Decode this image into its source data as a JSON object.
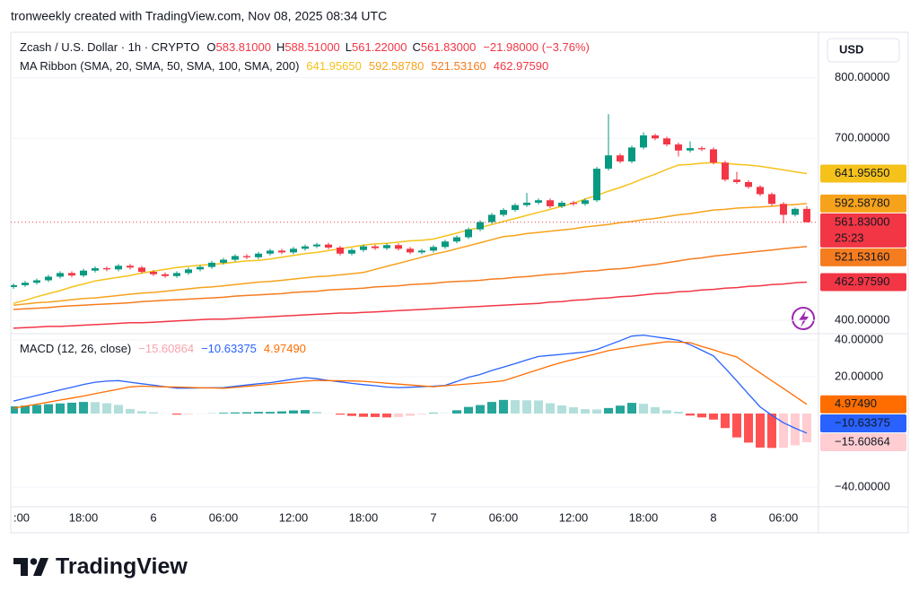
{
  "header": "tronweekly created with TradingView.com, Nov 08, 2025 08:34 UTC",
  "brand": "TradingView",
  "chart_data": [
    {
      "type": "candlestick",
      "title": "Zcash / U.S. Dollar · 1h · CRYPTO",
      "ohlc_legend": [
        {
          "key": "O",
          "value": "583.81000"
        },
        {
          "key": "H",
          "value": "588.51000"
        },
        {
          "key": "L",
          "value": "561.22000"
        },
        {
          "key": "C",
          "value": "561.83000"
        }
      ],
      "change": "−21.98000 (−3.76%)",
      "currency": "USD",
      "categories": [
        ":00",
        null,
        null,
        null,
        null,
        null,
        "18:00",
        null,
        null,
        null,
        null,
        null,
        "6",
        null,
        null,
        null,
        null,
        null,
        "06:00",
        null,
        null,
        null,
        null,
        null,
        "12:00",
        null,
        null,
        null,
        null,
        null,
        "18:00",
        null,
        null,
        null,
        null,
        null,
        "7",
        null,
        null,
        null,
        null,
        null,
        "06:00",
        null,
        null,
        null,
        null,
        null,
        "12:00",
        null,
        null,
        null,
        null,
        null,
        "18:00",
        null,
        null,
        null,
        null,
        null,
        "8",
        null,
        null,
        null,
        null,
        null,
        "06:00",
        null,
        null
      ],
      "open": [
        455,
        458,
        462,
        466,
        472,
        478,
        474,
        482,
        486,
        484,
        490,
        487,
        480,
        476,
        473,
        478,
        484,
        488,
        495,
        500,
        506,
        504,
        510,
        515,
        512,
        518,
        522,
        525,
        520,
        510,
        516,
        522,
        519,
        524,
        518,
        512,
        515,
        521,
        530,
        537,
        550,
        562,
        574,
        582,
        590,
        594,
        598,
        588,
        594,
        592,
        598,
        650,
        672,
        662,
        685,
        705,
        700,
        690,
        680,
        684,
        682,
        660,
        632,
        628,
        620,
        608,
        592,
        574,
        583.81
      ],
      "high": [
        461,
        465,
        469,
        475,
        481,
        481,
        485,
        489,
        489,
        493,
        493,
        490,
        483,
        479,
        481,
        487,
        491,
        498,
        503,
        509,
        509,
        513,
        518,
        518,
        521,
        525,
        528,
        528,
        523,
        519,
        525,
        525,
        527,
        527,
        521,
        518,
        524,
        533,
        540,
        553,
        565,
        577,
        585,
        593,
        610,
        601,
        601,
        597,
        597,
        601,
        653,
        740,
        675,
        688,
        710,
        708,
        703,
        693,
        695,
        687,
        685,
        663,
        645,
        631,
        623,
        611,
        595,
        586,
        588.51
      ],
      "low": [
        452,
        455,
        459,
        463,
        469,
        471,
        471,
        479,
        481,
        481,
        484,
        477,
        473,
        470,
        470,
        475,
        481,
        485,
        492,
        497,
        501,
        501,
        507,
        509,
        509,
        515,
        519,
        517,
        507,
        507,
        513,
        516,
        516,
        515,
        509,
        509,
        512,
        518,
        527,
        534,
        547,
        559,
        571,
        579,
        587,
        591,
        585,
        585,
        589,
        589,
        595,
        647,
        659,
        659,
        682,
        697,
        687,
        670,
        677,
        679,
        657,
        629,
        625,
        617,
        605,
        589,
        560,
        571,
        561.22
      ],
      "close": [
        458,
        462,
        466,
        472,
        478,
        474,
        482,
        486,
        484,
        490,
        487,
        480,
        476,
        473,
        478,
        484,
        488,
        495,
        500,
        506,
        504,
        510,
        515,
        512,
        518,
        522,
        525,
        520,
        510,
        516,
        522,
        519,
        524,
        518,
        512,
        515,
        521,
        530,
        537,
        550,
        562,
        574,
        582,
        590,
        594,
        598,
        588,
        594,
        592,
        598,
        650,
        672,
        662,
        685,
        705,
        700,
        690,
        680,
        684,
        682,
        660,
        632,
        628,
        620,
        608,
        592,
        574,
        583.81,
        561.83
      ],
      "up_color": "#089981",
      "down_color": "#f23645",
      "last_price_label": "561.83000",
      "countdown": "25:23",
      "overlay": {
        "title": "MA Ribbon (SMA, 20, SMA, 50, SMA, 100, SMA, 200)",
        "series": [
          {
            "color": "#f5c21b",
            "label_text_color": "#131722",
            "value_label": "641.95650",
            "values": [
              428,
              433,
              439,
              444,
              449,
              455,
              460,
              465,
              468,
              471,
              474,
              478,
              481,
              484,
              487,
              489,
              491,
              492,
              494,
              496,
              498,
              499,
              501,
              504,
              507,
              510,
              512,
              515,
              518,
              521,
              524,
              526,
              527,
              529,
              531,
              532,
              534,
              539,
              544,
              549,
              553,
              558,
              563,
              568,
              573,
              578,
              583,
              588,
              593,
              600,
              606,
              613,
              619,
              626,
              634,
              641,
              649,
              656,
              657,
              659,
              660,
              659,
              657,
              656,
              654,
              651,
              648,
              645,
              641.9565
            ]
          },
          {
            "color": "#f7a21b",
            "label_text_color": "#131722",
            "value_label": "592.58780",
            "values": [
              425,
              427,
              429,
              430,
              432,
              434,
              436,
              437,
              439,
              441,
              443,
              445,
              446,
              448,
              450,
              452,
              454,
              455,
              457,
              459,
              461,
              463,
              464,
              466,
              468,
              470,
              472,
              473,
              475,
              477,
              479,
              484,
              489,
              494,
              499,
              504,
              509,
              513,
              518,
              523,
              528,
              533,
              538,
              540,
              543,
              545,
              547,
              549,
              551,
              554,
              556,
              558,
              561,
              563,
              566,
              568,
              571,
              574,
              576,
              579,
              582,
              583,
              585,
              586,
              587,
              588,
              590,
              591,
              592.5878
            ]
          },
          {
            "color": "#f57c1f",
            "label_text_color": "#131722",
            "value_label": "521.53160",
            "values": [
              418,
              419,
              420,
              421,
              423,
              424,
              425,
              426,
              427,
              428,
              429,
              431,
              432,
              433,
              434,
              435,
              436,
              437,
              438,
              440,
              441,
              442,
              443,
              444,
              446,
              447,
              448,
              450,
              451,
              452,
              453,
              455,
              456,
              457,
              459,
              460,
              461,
              463,
              464,
              465,
              466,
              468,
              469,
              471,
              472,
              474,
              476,
              477,
              479,
              481,
              482,
              484,
              485,
              487,
              490,
              492,
              495,
              498,
              501,
              503,
              506,
              508,
              510,
              512,
              514,
              516,
              518,
              520,
              521.5316
            ]
          },
          {
            "color": "#f23645",
            "label_text_color": "#ffffff",
            "value_label": "462.97590",
            "values": [
              387,
              388,
              389,
              390,
              390,
              391,
              392,
              393,
              394,
              395,
              396,
              396,
              397,
              398,
              399,
              400,
              401,
              402,
              402,
              403,
              404,
              405,
              406,
              407,
              408,
              409,
              410,
              411,
              412,
              412,
              413,
              414,
              415,
              416,
              417,
              418,
              419,
              420,
              421,
              422,
              423,
              424,
              425,
              426,
              427,
              428,
              430,
              431,
              433,
              434,
              436,
              437,
              439,
              440,
              442,
              444,
              445,
              447,
              448,
              450,
              451,
              453,
              454,
              456,
              457,
              459,
              460,
              462,
              462.9759
            ]
          }
        ]
      },
      "ylim": [
        378,
        869
      ],
      "yticks": [
        {
          "value": 400,
          "label": "400.00000"
        },
        {
          "value": 700,
          "label": "700.00000"
        },
        {
          "value": 800,
          "label": "800.00000"
        }
      ]
    },
    {
      "type": "macd",
      "title": "MACD (12, 26, close)",
      "histogram": {
        "value_label": "−15.60864",
        "legend_color": "#f7a3ab",
        "label_text_color": "#131722",
        "colors": {
          "grow_above": "#26a69a",
          "fall_above": "#b2dfdb",
          "grow_below": "#ffcdd2",
          "fall_below": "#ff5252"
        },
        "values": [
          3.9,
          4.3,
          4.7,
          5.1,
          5.5,
          5.9,
          6.3,
          6.2,
          5.6,
          4.7,
          2.5,
          1.3,
          0.7,
          0.1,
          -0.6,
          -0.4,
          -0.1,
          0.1,
          0.4,
          0.6,
          0.7,
          0.9,
          0.9,
          1.2,
          1.7,
          1.9,
          0.9,
          0.1,
          -0.6,
          -1.3,
          -1.8,
          -1.9,
          -2.1,
          -1.9,
          -1.2,
          -0.4,
          0.3,
          0.2,
          1.8,
          3.6,
          4.6,
          6.3,
          7.4,
          7.3,
          7.2,
          7.1,
          5.6,
          4.4,
          3.4,
          2.4,
          2.2,
          3.0,
          4.3,
          5.8,
          5.3,
          3.5,
          1.8,
          1.0,
          -1.1,
          -2.1,
          -3.3,
          -7.9,
          -13.0,
          -15.8,
          -18.5,
          -18.7,
          -18.6,
          -17.3,
          -15.60864
        ]
      },
      "series": [
        {
          "color": "#2962ff",
          "label_text_color": "#ffffff",
          "value_label": "−10.63375",
          "values": [
            6.8,
            8.3,
            9.8,
            11.3,
            12.8,
            14.3,
            15.8,
            17.0,
            17.6,
            17.9,
            17.0,
            16.2,
            15.4,
            14.6,
            13.8,
            13.8,
            13.9,
            14.0,
            14.1,
            14.8,
            15.5,
            16.2,
            16.8,
            17.7,
            18.7,
            19.5,
            18.9,
            18.0,
            17.2,
            16.4,
            15.7,
            15.1,
            14.4,
            14.1,
            14.3,
            14.6,
            14.9,
            15.3,
            17.4,
            19.7,
            21.2,
            23.4,
            25.2,
            27.1,
            29.1,
            31.0,
            31.6,
            32.2,
            32.8,
            33.4,
            34.8,
            37.2,
            39.6,
            42.1,
            42.6,
            41.7,
            40.8,
            39.8,
            37.4,
            34.4,
            31.3,
            24.7,
            17.7,
            10.6,
            3.6,
            -0.9,
            -5.0,
            -8.0,
            -10.63375
          ]
        },
        {
          "color": "#ff6d00",
          "label_text_color": "#131722",
          "value_label": "4.97490",
          "values": [
            2.9,
            4.0,
            5.1,
            6.2,
            7.3,
            8.4,
            9.5,
            10.8,
            12.0,
            13.2,
            14.5,
            14.9,
            14.7,
            14.5,
            14.4,
            14.2,
            14.0,
            13.9,
            13.7,
            14.2,
            14.8,
            15.3,
            15.9,
            16.5,
            17.0,
            17.6,
            18.0,
            17.9,
            17.8,
            17.7,
            17.5,
            17.0,
            16.5,
            16.0,
            15.5,
            15.0,
            14.6,
            15.1,
            15.6,
            16.1,
            16.6,
            17.1,
            17.8,
            19.8,
            21.9,
            23.9,
            26.0,
            27.8,
            29.4,
            31.0,
            32.6,
            34.2,
            35.3,
            36.3,
            37.3,
            38.2,
            39.0,
            38.8,
            38.5,
            36.5,
            34.6,
            32.6,
            30.7,
            26.4,
            22.1,
            17.8,
            13.6,
            9.3,
            4.9749
          ]
        }
      ],
      "ylim": [
        -50.7,
        43.4
      ],
      "yticks": [
        {
          "value": 40,
          "label": "40.00000"
        },
        {
          "value": 20,
          "label": "20.00000"
        },
        {
          "value": -40,
          "label": "−40.00000"
        }
      ]
    }
  ]
}
